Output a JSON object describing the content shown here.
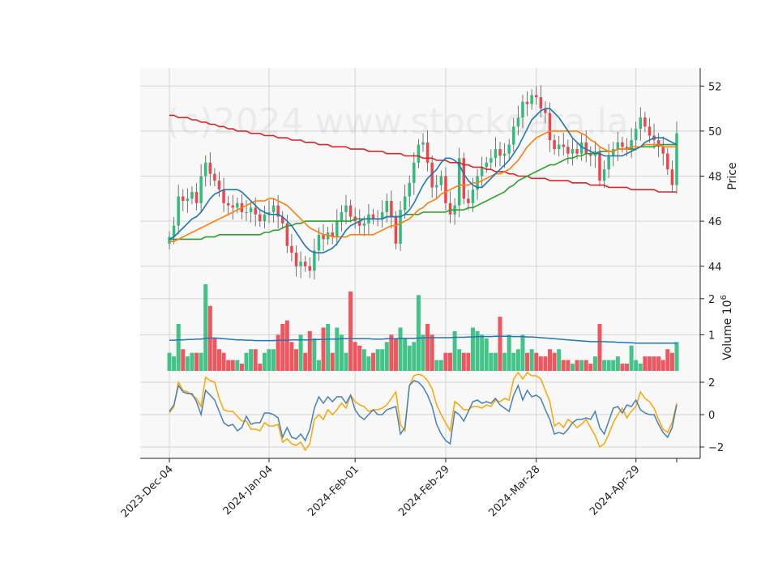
{
  "watermark": "(c)2024 www.stockdata.la",
  "colors": {
    "up": "#2ebd7a",
    "down": "#f0444d",
    "ma_short": "#1f77b4",
    "ma_mid": "#ff7f0e",
    "ma_long": "#2ca02c",
    "ma_200": "#d62728",
    "volume_ma": "#1f77b4",
    "osc_a": "#4682b4",
    "osc_b": "#ffa500",
    "panel_bg": "#f8f8f8",
    "grid": "#d4d4d4"
  },
  "chart_data": {
    "type": "candlestick",
    "x_ticks": [
      "2023-Dec-04",
      "2024-Jan-04",
      "2024-Feb-01",
      "2024-Feb-29",
      "2024-Mar-28",
      "2024-Apr-29"
    ],
    "price_panel": {
      "ylabel": "Price",
      "y_ticks": [
        44,
        46,
        48,
        50,
        52
      ],
      "ylim": [
        43.2,
        52.8
      ],
      "close": [
        45.3,
        45.8,
        47.1,
        46.9,
        47.0,
        47.3,
        46.8,
        48.0,
        48.6,
        48.1,
        47.8,
        47.4,
        46.8,
        46.7,
        46.6,
        46.8,
        46.4,
        46.4,
        46.6,
        46.3,
        46.0,
        46.3,
        46.4,
        46.7,
        46.2,
        45.9,
        44.9,
        44.6,
        44.0,
        44.2,
        44.0,
        43.8,
        44.7,
        45.4,
        45.2,
        45.5,
        45.3,
        46.0,
        46.4,
        46.7,
        46.2,
        46.0,
        45.8,
        45.9,
        46.3,
        46.1,
        46.1,
        46.4,
        46.9,
        46.2,
        45.0,
        46.5,
        47.1,
        47.7,
        48.6,
        49.4,
        49.5,
        48.6,
        47.5,
        47.6,
        48.0,
        46.8,
        46.3,
        46.7,
        48.8,
        47.0,
        46.8,
        47.4,
        48.0,
        48.4,
        48.6,
        48.8,
        49.2,
        48.9,
        49.0,
        49.4,
        50.2,
        50.6,
        51.3,
        51.2,
        51.6,
        51.5,
        51.0,
        50.8,
        49.6,
        49.2,
        49.4,
        49.3,
        49.0,
        49.2,
        49.0,
        49.5,
        49.0,
        48.9,
        49.1,
        47.8,
        48.3,
        48.9,
        49.2,
        49.5,
        49.3,
        49.2,
        49.6,
        50.1,
        50.6,
        50.2,
        49.8,
        49.6,
        49.3,
        49.0,
        48.3,
        47.6,
        49.9
      ],
      "ma_short": [
        45.2,
        45.3,
        45.5,
        45.7,
        45.9,
        46.1,
        46.2,
        46.4,
        46.7,
        47.0,
        47.2,
        47.3,
        47.4,
        47.4,
        47.4,
        47.4,
        47.3,
        47.1,
        46.9,
        46.7,
        46.5,
        46.4,
        46.3,
        46.3,
        46.3,
        46.2,
        46.0,
        45.8,
        45.5,
        45.2,
        44.9,
        44.7,
        44.6,
        44.6,
        44.6,
        44.7,
        44.8,
        45.0,
        45.3,
        45.6,
        45.8,
        45.9,
        46.0,
        46.1,
        46.1,
        46.1,
        46.1,
        46.1,
        46.2,
        46.2,
        46.2,
        46.2,
        46.3,
        46.5,
        46.8,
        47.2,
        47.6,
        47.9,
        48.1,
        48.3,
        48.6,
        48.8,
        48.8,
        48.7,
        48.5,
        48.1,
        47.8,
        47.6,
        47.5,
        47.5,
        47.7,
        47.9,
        48.1,
        48.3,
        48.5,
        48.7,
        49.0,
        49.3,
        49.7,
        50.1,
        50.5,
        50.7,
        50.9,
        51.0,
        51.0,
        50.8,
        50.6,
        50.3,
        50.0,
        49.7,
        49.5,
        49.3,
        49.2,
        49.1,
        49.0,
        49.0,
        48.9,
        48.9,
        48.9,
        48.9,
        48.9,
        49.0,
        49.1,
        49.2,
        49.3,
        49.5,
        49.6,
        49.7,
        49.7,
        49.7,
        49.6,
        49.5,
        49.4
      ],
      "ma_mid": [
        45.1,
        45.1,
        45.2,
        45.3,
        45.4,
        45.5,
        45.6,
        45.7,
        45.8,
        45.9,
        46.0,
        46.1,
        46.2,
        46.3,
        46.4,
        46.5,
        46.6,
        46.7,
        46.8,
        46.9,
        46.9,
        46.9,
        47.0,
        47.0,
        46.9,
        46.8,
        46.7,
        46.5,
        46.3,
        46.1,
        45.9,
        45.7,
        45.6,
        45.5,
        45.4,
        45.4,
        45.3,
        45.3,
        45.3,
        45.3,
        45.4,
        45.4,
        45.4,
        45.4,
        45.4,
        45.4,
        45.5,
        45.6,
        45.7,
        45.8,
        45.8,
        45.9,
        46.0,
        46.1,
        46.3,
        46.5,
        46.6,
        46.8,
        46.9,
        47.0,
        47.2,
        47.3,
        47.4,
        47.5,
        47.6,
        47.6,
        47.6,
        47.7,
        47.7,
        47.8,
        47.9,
        48.0,
        48.1,
        48.1,
        48.2,
        48.3,
        48.5,
        48.7,
        49.0,
        49.3,
        49.5,
        49.7,
        49.8,
        49.9,
        50.0,
        50.0,
        50.0,
        50.0,
        50.0,
        50.0,
        50.0,
        49.9,
        49.8,
        49.6,
        49.5,
        49.3,
        49.2,
        49.1,
        49.1,
        49.2,
        49.2,
        49.2,
        49.3,
        49.3,
        49.3,
        49.4,
        49.4,
        49.4,
        49.4,
        49.3,
        49.3,
        49.3,
        49.3
      ],
      "ma_long": [
        45.2,
        45.2,
        45.2,
        45.2,
        45.2,
        45.2,
        45.2,
        45.2,
        45.3,
        45.3,
        45.3,
        45.4,
        45.4,
        45.4,
        45.4,
        45.4,
        45.4,
        45.4,
        45.4,
        45.4,
        45.4,
        45.5,
        45.5,
        45.6,
        45.6,
        45.7,
        45.8,
        45.8,
        45.9,
        45.9,
        46.0,
        46.0,
        46.0,
        46.0,
        46.0,
        46.0,
        46.0,
        46.0,
        46.0,
        46.0,
        46.0,
        46.1,
        46.1,
        46.1,
        46.1,
        46.1,
        46.1,
        46.1,
        46.2,
        46.2,
        46.2,
        46.2,
        46.3,
        46.3,
        46.3,
        46.3,
        46.4,
        46.4,
        46.4,
        46.4,
        46.4,
        46.4,
        46.5,
        46.5,
        46.5,
        46.5,
        46.6,
        46.6,
        46.7,
        46.8,
        46.9,
        47.0,
        47.1,
        47.2,
        47.3,
        47.5,
        47.6,
        47.8,
        47.9,
        48.0,
        48.1,
        48.2,
        48.3,
        48.4,
        48.5,
        48.5,
        48.6,
        48.7,
        48.8,
        48.8,
        48.9,
        48.9,
        49.0,
        49.0,
        49.0,
        49.1,
        49.1,
        49.1,
        49.1,
        49.2,
        49.2,
        49.2,
        49.2,
        49.2,
        49.3,
        49.3,
        49.3,
        49.3,
        49.4,
        49.4,
        49.4,
        49.4,
        49.4
      ],
      "ma_200": [
        50.7,
        50.7,
        50.6,
        50.6,
        50.6,
        50.5,
        50.5,
        50.4,
        50.4,
        50.3,
        50.3,
        50.2,
        50.2,
        50.1,
        50.1,
        50.0,
        50.0,
        50.0,
        49.9,
        49.9,
        49.9,
        49.8,
        49.8,
        49.8,
        49.7,
        49.7,
        49.7,
        49.6,
        49.6,
        49.6,
        49.5,
        49.5,
        49.5,
        49.4,
        49.4,
        49.4,
        49.3,
        49.3,
        49.3,
        49.3,
        49.2,
        49.2,
        49.2,
        49.2,
        49.1,
        49.1,
        49.1,
        49.1,
        49.0,
        49.0,
        49.0,
        49.0,
        48.9,
        48.9,
        48.9,
        48.9,
        48.8,
        48.8,
        48.8,
        48.7,
        48.7,
        48.7,
        48.6,
        48.6,
        48.6,
        48.5,
        48.5,
        48.4,
        48.4,
        48.4,
        48.3,
        48.3,
        48.2,
        48.2,
        48.2,
        48.1,
        48.1,
        48.0,
        48.0,
        48.0,
        47.9,
        47.9,
        47.9,
        47.9,
        47.8,
        47.8,
        47.8,
        47.8,
        47.8,
        47.7,
        47.7,
        47.7,
        47.7,
        47.6,
        47.6,
        47.6,
        47.6,
        47.5,
        47.5,
        47.5,
        47.5,
        47.5,
        47.4,
        47.4,
        47.4,
        47.4,
        47.4,
        47.4,
        47.3,
        47.3,
        47.3,
        47.3,
        47.3
      ]
    },
    "volume_panel": {
      "ylabel": "Volume",
      "unit_label": "10",
      "unit_exponent": "6",
      "y_ticks": [
        1,
        2
      ],
      "ylim": [
        0,
        2.4
      ],
      "volume_millions": [
        0.5,
        0.4,
        1.3,
        0.6,
        0.4,
        0.5,
        0.5,
        0.5,
        2.4,
        1.8,
        0.9,
        0.6,
        0.5,
        0.3,
        0.3,
        0.3,
        0.2,
        0.5,
        0.6,
        0.6,
        0.2,
        0.5,
        0.6,
        0.6,
        1.0,
        1.3,
        1.4,
        0.8,
        0.6,
        1.0,
        0.5,
        1.1,
        0.9,
        0.3,
        1.2,
        1.3,
        0.5,
        1.2,
        1.0,
        0.5,
        2.2,
        0.8,
        0.7,
        0.6,
        0.4,
        0.5,
        0.6,
        0.6,
        0.8,
        1.0,
        0.9,
        1.2,
        0.9,
        0.7,
        0.8,
        2.1,
        1.0,
        1.3,
        1.0,
        0.3,
        0.3,
        0.5,
        0.5,
        1.1,
        0.6,
        0.5,
        0.5,
        1.2,
        1.1,
        1.0,
        0.9,
        0.5,
        0.5,
        1.5,
        0.5,
        1.0,
        0.5,
        0.6,
        1.0,
        0.5,
        0.6,
        0.5,
        0.4,
        0.4,
        0.6,
        0.5,
        0.6,
        0.3,
        0.3,
        0.2,
        0.3,
        0.3,
        0.3,
        0.2,
        0.4,
        1.3,
        0.3,
        0.3,
        0.3,
        0.4,
        0.2,
        0.2,
        0.7,
        0.3,
        0.2,
        0.4,
        0.4,
        0.4,
        0.4,
        0.3,
        0.6,
        0.5,
        0.8
      ],
      "volume_ma": [
        0.85,
        0.85,
        0.86,
        0.86,
        0.87,
        0.87,
        0.88,
        0.88,
        0.9,
        0.91,
        0.91,
        0.9,
        0.89,
        0.88,
        0.87,
        0.86,
        0.86,
        0.85,
        0.85,
        0.84,
        0.84,
        0.84,
        0.84,
        0.84,
        0.85,
        0.85,
        0.85,
        0.86,
        0.86,
        0.86,
        0.86,
        0.86,
        0.87,
        0.87,
        0.87,
        0.88,
        0.88,
        0.88,
        0.89,
        0.89,
        0.89,
        0.89,
        0.89,
        0.89,
        0.89,
        0.88,
        0.88,
        0.88,
        0.89,
        0.89,
        0.89,
        0.9,
        0.9,
        0.9,
        0.9,
        0.91,
        0.91,
        0.92,
        0.92,
        0.92,
        0.92,
        0.92,
        0.92,
        0.93,
        0.93,
        0.93,
        0.94,
        0.94,
        0.95,
        0.95,
        0.95,
        0.95,
        0.96,
        0.96,
        0.96,
        0.96,
        0.95,
        0.95,
        0.95,
        0.94,
        0.94,
        0.93,
        0.92,
        0.91,
        0.9,
        0.89,
        0.88,
        0.87,
        0.86,
        0.85,
        0.84,
        0.83,
        0.82,
        0.81,
        0.81,
        0.81,
        0.81,
        0.8,
        0.8,
        0.79,
        0.79,
        0.78,
        0.78,
        0.77,
        0.77,
        0.77,
        0.77,
        0.77,
        0.77,
        0.77,
        0.77,
        0.77,
        0.77
      ]
    },
    "oscillator_panel": {
      "y_ticks": [
        -2,
        0,
        2
      ],
      "ylim": [
        -2.7,
        2.7
      ],
      "line_a": [
        0.2,
        0.6,
        1.8,
        1.4,
        1.3,
        1.3,
        0.8,
        0.0,
        1.5,
        1.2,
        0.9,
        0.2,
        -0.5,
        -0.7,
        -0.6,
        -1.0,
        -0.8,
        -0.1,
        -0.6,
        -0.5,
        -0.5,
        0.1,
        0.1,
        0.0,
        -0.2,
        -1.4,
        -0.8,
        -1.4,
        -1.5,
        -1.2,
        -1.6,
        -0.9,
        0.4,
        1.1,
        0.7,
        1.1,
        0.8,
        1.1,
        1.1,
        0.7,
        1.2,
        0.3,
        -0.1,
        -0.3,
        0.0,
        0.3,
        0.0,
        0.0,
        0.3,
        0.4,
        0.5,
        -1.2,
        -0.8,
        1.8,
        2.1,
        2.0,
        1.7,
        1.2,
        0.5,
        -0.6,
        -1.2,
        -1.6,
        -1.8,
        0.2,
        0.0,
        -0.4,
        0.2,
        0.8,
        0.9,
        0.7,
        0.8,
        0.7,
        1.0,
        0.6,
        0.4,
        0.2,
        1.2,
        1.8,
        0.9,
        1.5,
        1.1,
        1.2,
        1.0,
        0.3,
        -0.3,
        -1.2,
        -1.1,
        -1.2,
        -0.9,
        -0.5,
        -0.3,
        -0.3,
        -0.2,
        -0.3,
        0.2,
        -0.8,
        -1.2,
        -0.4,
        0.4,
        0.5,
        0.1,
        0.6,
        0.5,
        0.9,
        0.3,
        0.1,
        0.0,
        0.0,
        -0.6,
        -1.1,
        -1.4,
        -0.8,
        0.6
      ],
      "line_b": [
        0.1,
        0.5,
        2.0,
        1.5,
        1.4,
        1.2,
        1.0,
        0.5,
        2.3,
        2.1,
        2.0,
        1.0,
        0.3,
        0.2,
        0.2,
        -0.1,
        -0.4,
        -0.4,
        -0.9,
        -0.9,
        -1.0,
        -0.5,
        -0.7,
        -0.7,
        -0.6,
        -1.7,
        -1.5,
        -1.8,
        -1.9,
        -1.7,
        -2.2,
        -1.8,
        -0.3,
        0.0,
        -0.3,
        0.3,
        0.0,
        0.3,
        0.7,
        0.4,
        1.2,
        0.8,
        0.6,
        0.5,
        0.2,
        0.3,
        0.3,
        0.4,
        0.6,
        1.0,
        1.4,
        -0.6,
        -1.0,
        1.8,
        2.4,
        2.5,
        2.4,
        2.1,
        1.6,
        0.6,
        0.0,
        -0.5,
        -1.0,
        0.8,
        0.6,
        0.3,
        0.3,
        0.5,
        0.5,
        0.4,
        0.6,
        0.5,
        0.9,
        0.8,
        1.0,
        0.9,
        2.2,
        2.6,
        2.2,
        2.6,
        2.4,
        2.4,
        2.2,
        1.5,
        0.8,
        -0.7,
        -0.5,
        -0.8,
        -0.3,
        -0.5,
        -0.8,
        -0.6,
        -0.3,
        -0.8,
        -1.3,
        -2.0,
        -1.8,
        -1.2,
        -0.5,
        0.0,
        0.4,
        -0.2,
        0.2,
        0.5,
        1.4,
        1.0,
        0.8,
        0.4,
        -0.3,
        -0.9,
        -1.1,
        -0.5,
        0.7
      ]
    }
  }
}
